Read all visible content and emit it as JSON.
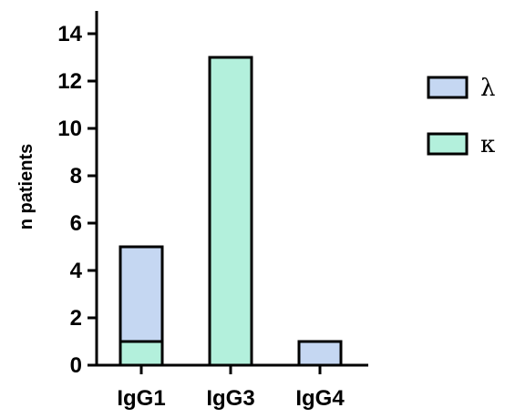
{
  "chart_data": {
    "type": "bar",
    "stacked": true,
    "title": "",
    "xlabel": "",
    "ylabel": "n patients",
    "ylim": [
      0,
      14
    ],
    "yticks": [
      0,
      2,
      4,
      6,
      8,
      10,
      12,
      14
    ],
    "categories": [
      "IgG1",
      "IgG3",
      "IgG4"
    ],
    "series": [
      {
        "name": "κ",
        "color": "#b3f0dc",
        "values": [
          1,
          13,
          0
        ]
      },
      {
        "name": "λ",
        "color": "#c5d7f2",
        "values": [
          4,
          0,
          1
        ]
      }
    ],
    "legend": {
      "position": "right",
      "items": [
        {
          "label": "λ",
          "color": "#c5d7f2"
        },
        {
          "label": "κ",
          "color": "#b3f0dc"
        }
      ]
    },
    "grid": false
  }
}
